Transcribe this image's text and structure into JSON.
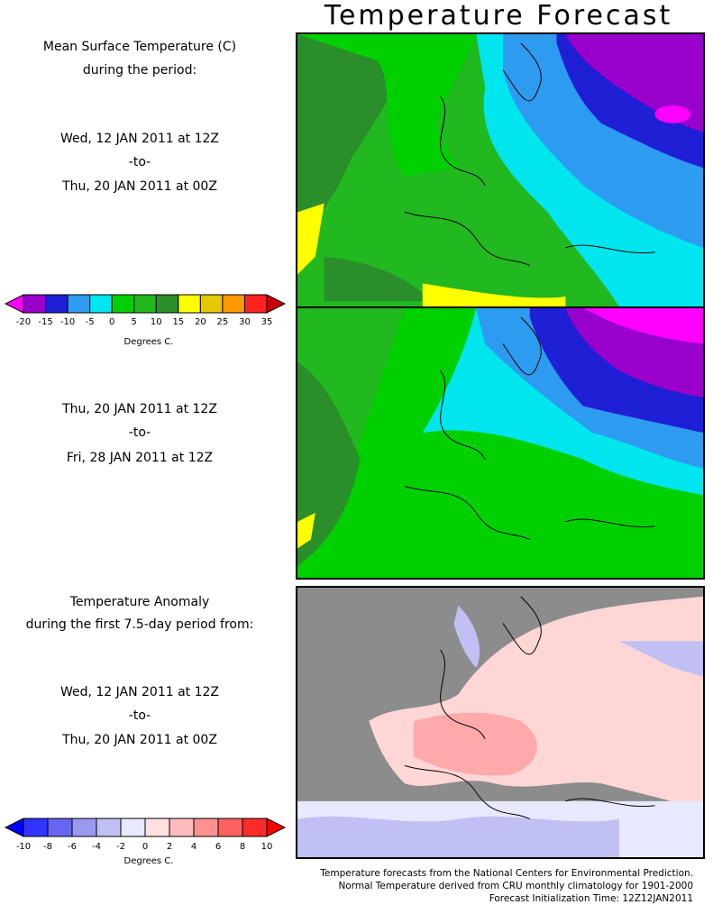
{
  "title": "Temperature Forecast",
  "panel1": {
    "heading_line1": "Mean Surface Temperature (C)",
    "heading_line2": "during the period:",
    "start": "Wed, 12 JAN 2011 at 12Z",
    "to": "-to-",
    "end": "Thu, 20 JAN 2011 at 00Z"
  },
  "panel2": {
    "start": "Thu, 20 JAN 2011 at 12Z",
    "to": "-to-",
    "end": "Fri, 28 JAN 2011 at 12Z"
  },
  "panel3": {
    "heading_line1": "Temperature Anomaly",
    "heading_line2": "during the first 7.5-day period from:",
    "start": "Wed, 12 JAN 2011 at 12Z",
    "to": "-to-",
    "end": "Thu, 20 JAN 2011 at 00Z"
  },
  "temp_scale": {
    "ticks": [
      "-20",
      "-15",
      "-10",
      "-5",
      "0",
      "5",
      "10",
      "15",
      "20",
      "25",
      "30",
      "35"
    ],
    "units": "Degrees C.",
    "colors": [
      "#ff00ff",
      "#9900cc",
      "#1f1fd6",
      "#2d9bf0",
      "#00e5ee",
      "#00d000",
      "#22b81f",
      "#2a8f2a",
      "#ffff00",
      "#e6c800",
      "#ff9900",
      "#ff2020",
      "#c80000"
    ]
  },
  "anom_scale": {
    "ticks": [
      "-10",
      "-8",
      "-6",
      "-4",
      "-2",
      "0",
      "2",
      "4",
      "6",
      "8",
      "10"
    ],
    "units": "Degrees C.",
    "colors": [
      "#0000ff",
      "#3333ff",
      "#6666ee",
      "#9999f0",
      "#c0c0f5",
      "#e8e8ff",
      "#ffe0e0",
      "#ffbbbb",
      "#ff9090",
      "#ff6060",
      "#ff2a2a",
      "#ff0000"
    ]
  },
  "footer": {
    "line1": "Temperature forecasts from the National Centers for Environmental Prediction.",
    "line2": "Normal Temperature derived from CRU monthly climatology for 1901-2000",
    "line3": "Forecast Initialization Time: 12Z12JAN2011"
  }
}
